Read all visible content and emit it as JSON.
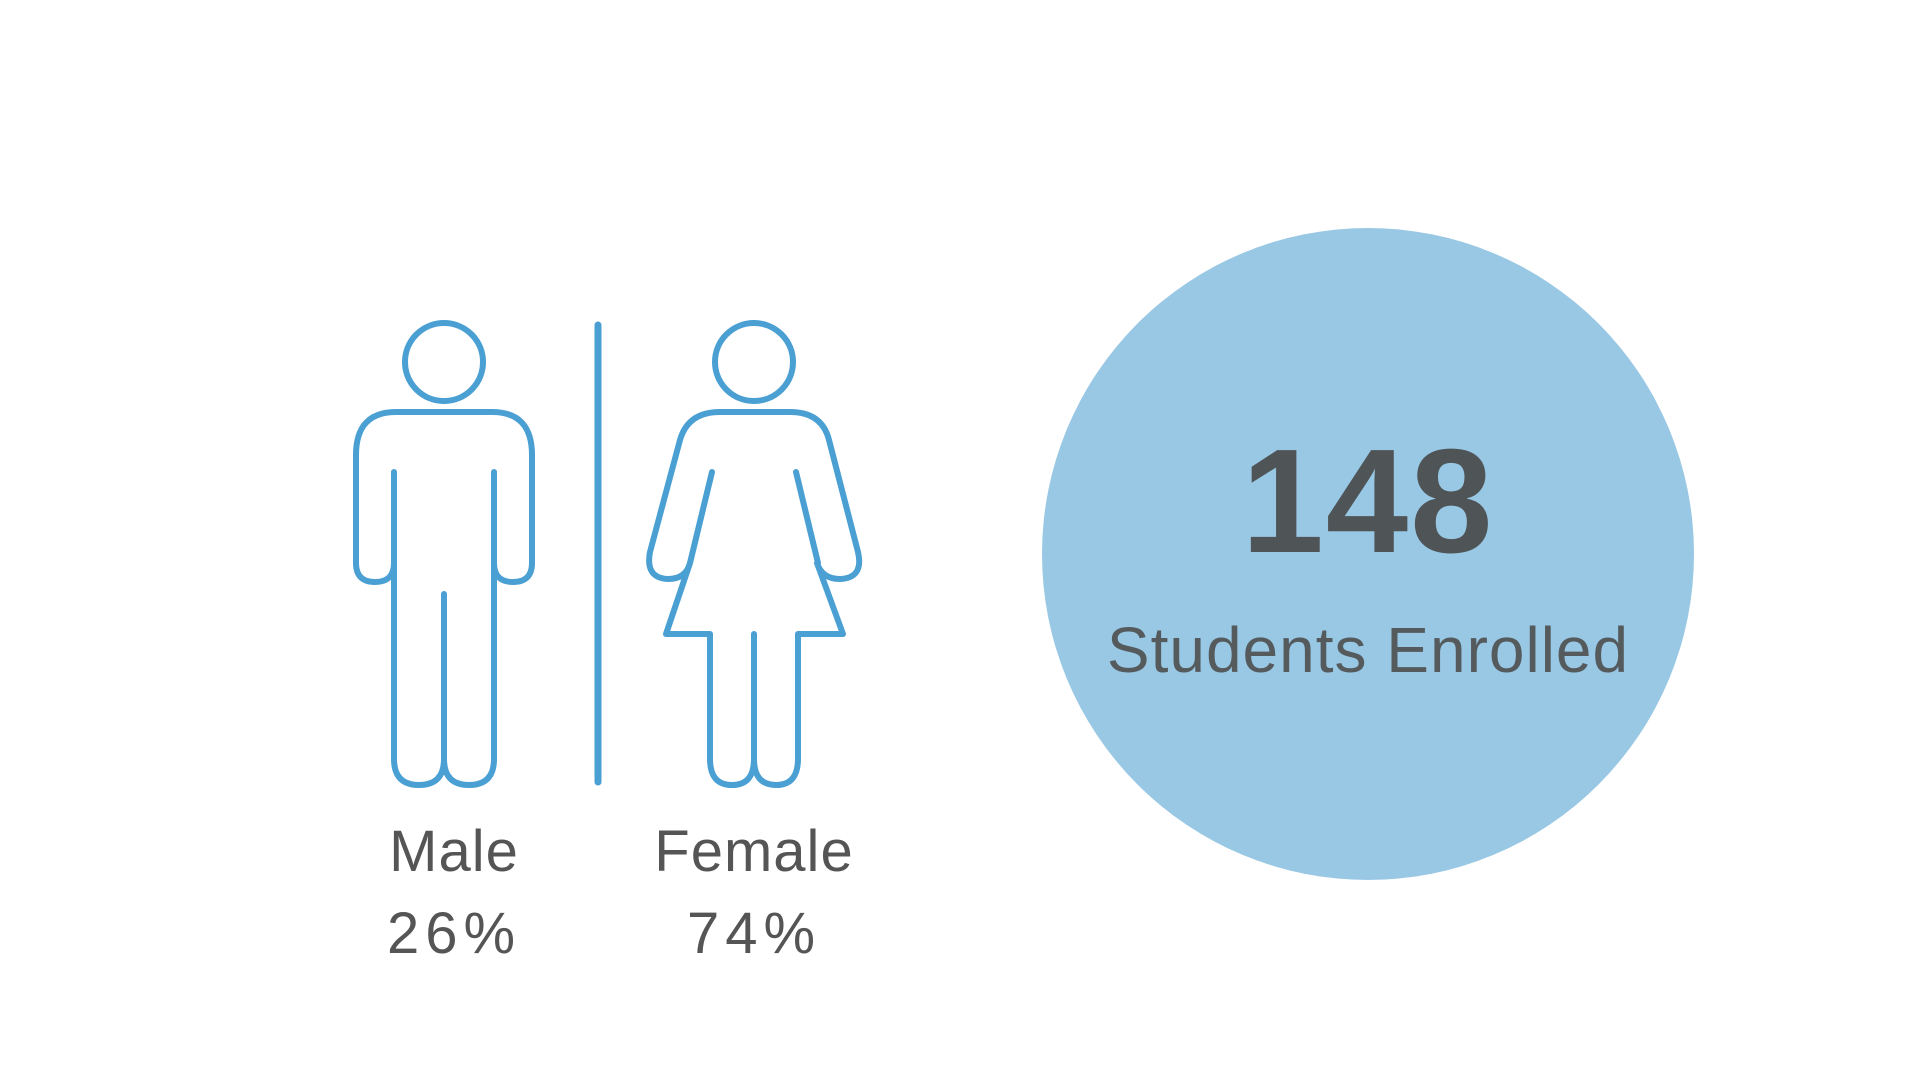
{
  "colors": {
    "icon_stroke": "#4a9fd3",
    "circle_fill": "#99c8e5",
    "text": "#555555"
  },
  "gender": {
    "male": {
      "icon": "male-figure-icon",
      "label": "Male",
      "percent": "26%"
    },
    "female": {
      "icon": "female-figure-icon",
      "label": "Female",
      "percent": "74%"
    }
  },
  "enrollment": {
    "count": "148",
    "label": "Students Enrolled"
  }
}
